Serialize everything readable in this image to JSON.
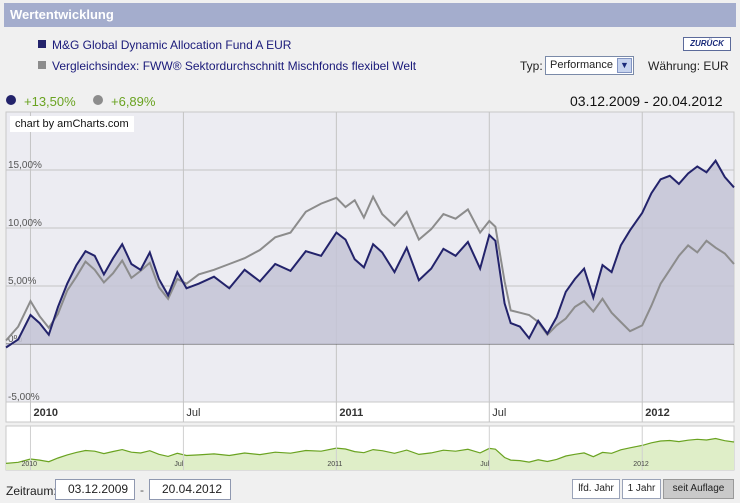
{
  "title": "Wertentwicklung",
  "legend": {
    "fund": "M&G Global Dynamic Allocation Fund A EUR",
    "index": "Vergleichsindex: FWW® Sektordurchschnitt Mischfonds flexibel Welt"
  },
  "back_label": "ZURÜCK",
  "typ": {
    "label": "Typ:",
    "value": "Performance"
  },
  "currency": "Währung: EUR",
  "performance": {
    "fund": "+13,50%",
    "index": "+6,89%"
  },
  "date_range": "03.12.2009 - 20.04.2012",
  "credit": "chart by amCharts.com",
  "colors": {
    "fund": "#23236b",
    "index": "#8c8c8c",
    "fund_fill": "#c4c4d6",
    "nav": "#6aa321",
    "nav_fill": "#dfeec8"
  },
  "footer": {
    "label": "Zeitraum:",
    "from": "03.12.2009",
    "to": "20.04.2012",
    "buttons": [
      "lfd. Jahr",
      "1 Jahr",
      "seit Auflage"
    ],
    "active_button": "seit Auflage"
  },
  "chart_data": {
    "type": "line",
    "title": "Wertentwicklung",
    "xlabel": "",
    "ylabel": "",
    "unit": "%",
    "ylim": [
      -5,
      20
    ],
    "y_ticks": [
      -5,
      0,
      5,
      10,
      15
    ],
    "y_tick_labels": [
      "-5,00%",
      "0%",
      "5,00%",
      "10,00%",
      "15,00%"
    ],
    "x_range": [
      2009.92,
      2012.3
    ],
    "x_ticks": [
      {
        "x": 2010.0,
        "label": "2010",
        "major": true
      },
      {
        "x": 2010.5,
        "label": "Jul",
        "major": false
      },
      {
        "x": 2011.0,
        "label": "2011",
        "major": true
      },
      {
        "x": 2011.5,
        "label": "Jul",
        "major": false
      },
      {
        "x": 2012.0,
        "label": "2012",
        "major": true
      }
    ],
    "series": [
      {
        "name": "M&G Global Dynamic Allocation Fund A EUR",
        "x": [
          2009.92,
          2009.96,
          2010.0,
          2010.03,
          2010.06,
          2010.09,
          2010.12,
          2010.15,
          2010.18,
          2010.21,
          2010.24,
          2010.27,
          2010.3,
          2010.33,
          2010.36,
          2010.39,
          2010.42,
          2010.45,
          2010.48,
          2010.51,
          2010.55,
          2010.6,
          2010.65,
          2010.7,
          2010.75,
          2010.8,
          2010.85,
          2010.9,
          2010.95,
          2011.0,
          2011.03,
          2011.06,
          2011.09,
          2011.12,
          2011.15,
          2011.19,
          2011.23,
          2011.27,
          2011.31,
          2011.35,
          2011.39,
          2011.43,
          2011.47,
          2011.5,
          2011.52,
          2011.55,
          2011.57,
          2011.6,
          2011.63,
          2011.66,
          2011.69,
          2011.72,
          2011.75,
          2011.78,
          2011.81,
          2011.84,
          2011.87,
          2011.9,
          2011.93,
          2011.96,
          2012.0,
          2012.03,
          2012.06,
          2012.09,
          2012.12,
          2012.15,
          2012.18,
          2012.21,
          2012.24,
          2012.27,
          2012.3
        ],
        "values": [
          -0.3,
          0.4,
          2.5,
          1.8,
          0.8,
          3.2,
          5.2,
          6.8,
          8.0,
          7.6,
          6.0,
          7.4,
          8.6,
          6.9,
          6.4,
          7.9,
          5.6,
          4.2,
          6.2,
          4.8,
          5.2,
          5.8,
          4.8,
          6.4,
          5.4,
          6.9,
          6.3,
          8.0,
          7.6,
          9.6,
          9.0,
          7.3,
          6.6,
          8.6,
          7.9,
          6.2,
          8.3,
          5.5,
          6.5,
          8.2,
          7.6,
          8.8,
          6.5,
          9.4,
          8.9,
          3.5,
          1.8,
          1.5,
          0.5,
          2.0,
          0.9,
          2.3,
          4.5,
          5.6,
          6.5,
          4.0,
          6.8,
          6.2,
          8.5,
          9.8,
          11.3,
          13.0,
          14.2,
          14.5,
          13.8,
          14.7,
          15.3,
          14.8,
          15.8,
          14.4,
          13.5
        ]
      },
      {
        "name": "Vergleichsindex: FWW® Sektordurchschnitt Mischfonds flexibel Welt",
        "x": [
          2009.92,
          2009.96,
          2010.0,
          2010.03,
          2010.06,
          2010.09,
          2010.12,
          2010.15,
          2010.18,
          2010.21,
          2010.24,
          2010.27,
          2010.3,
          2010.33,
          2010.36,
          2010.39,
          2010.42,
          2010.45,
          2010.48,
          2010.51,
          2010.55,
          2010.6,
          2010.65,
          2010.7,
          2010.75,
          2010.8,
          2010.85,
          2010.9,
          2010.95,
          2011.0,
          2011.03,
          2011.06,
          2011.09,
          2011.12,
          2011.15,
          2011.19,
          2011.23,
          2011.27,
          2011.31,
          2011.35,
          2011.39,
          2011.43,
          2011.47,
          2011.5,
          2011.52,
          2011.55,
          2011.57,
          2011.6,
          2011.63,
          2011.66,
          2011.69,
          2011.72,
          2011.75,
          2011.78,
          2011.81,
          2011.84,
          2011.87,
          2011.9,
          2011.93,
          2011.96,
          2012.0,
          2012.03,
          2012.06,
          2012.09,
          2012.12,
          2012.15,
          2012.18,
          2012.21,
          2012.24,
          2012.27,
          2012.3
        ],
        "values": [
          0.3,
          1.5,
          3.7,
          2.4,
          1.4,
          2.6,
          4.6,
          5.8,
          7.1,
          6.4,
          5.3,
          6.1,
          7.2,
          5.7,
          6.3,
          7.0,
          4.9,
          3.9,
          5.6,
          5.2,
          6.0,
          6.4,
          6.9,
          7.4,
          8.1,
          9.2,
          9.6,
          11.4,
          12.1,
          12.6,
          11.8,
          12.4,
          10.9,
          12.7,
          11.2,
          10.2,
          11.4,
          9.0,
          9.9,
          11.2,
          10.8,
          11.6,
          9.6,
          10.6,
          10.1,
          5.4,
          2.9,
          2.7,
          2.5,
          1.9,
          0.8,
          1.6,
          2.2,
          3.2,
          3.7,
          2.8,
          3.9,
          2.7,
          1.9,
          1.1,
          1.6,
          3.3,
          5.2,
          6.4,
          7.6,
          8.5,
          7.9,
          8.9,
          8.3,
          7.8,
          6.9
        ]
      }
    ]
  }
}
